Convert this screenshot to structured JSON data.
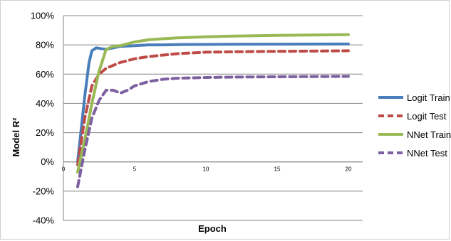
{
  "chart_data": {
    "type": "line",
    "title": "",
    "xlabel": "Epoch",
    "ylabel": "Model R²",
    "xlim": [
      0,
      21
    ],
    "ylim": [
      -40,
      100
    ],
    "y_ticks": [
      -40,
      -20,
      0,
      20,
      40,
      60,
      80,
      100
    ],
    "y_tick_labels": [
      "-40%",
      "-20%",
      "0%",
      "20%",
      "40%",
      "60%",
      "80%",
      "100%"
    ],
    "x_ticks": [
      0,
      5,
      10,
      15,
      20
    ],
    "x_tick_labels": [
      "0",
      "5",
      "10",
      "15",
      "20"
    ],
    "grid": "horizontal",
    "legend_position": "right",
    "series": [
      {
        "name": "Logit Train",
        "color": "#4a7ebb",
        "dash": "solid",
        "x": [
          1,
          1.5,
          1.8,
          2,
          2.3,
          2.6,
          3,
          3.5,
          4,
          5,
          6,
          7,
          8,
          10,
          12,
          15,
          20
        ],
        "y": [
          0,
          45,
          68,
          76,
          78,
          77.5,
          77,
          78,
          79,
          79.5,
          80,
          80,
          80.2,
          80.3,
          80.4,
          80.5,
          80.6
        ]
      },
      {
        "name": "Logit Test",
        "color": "#be4b48",
        "dash": "dashed",
        "x": [
          1,
          1.5,
          2,
          2.5,
          3,
          3.5,
          4,
          5,
          6,
          7,
          8,
          10,
          12,
          15,
          20
        ],
        "y": [
          -2,
          30,
          52,
          60,
          64,
          66,
          68,
          70.5,
          72,
          73,
          74,
          75,
          75.3,
          75.6,
          76
        ]
      },
      {
        "name": "NNet Train",
        "color": "#98b954",
        "dash": "solid",
        "x": [
          1,
          1.5,
          2,
          2.5,
          3,
          3.5,
          4,
          5,
          6,
          7,
          8,
          10,
          12,
          15,
          20
        ],
        "y": [
          -7,
          15,
          40,
          62,
          77,
          79,
          79.5,
          82,
          83.5,
          84.2,
          84.8,
          85.5,
          86,
          86.5,
          87
        ]
      },
      {
        "name": "NNet Test",
        "color": "#7d60a0",
        "dash": "dashed",
        "x": [
          1,
          1.5,
          2,
          2.5,
          3,
          3.5,
          4,
          4.5,
          5,
          6,
          7,
          8,
          10,
          12,
          15,
          20
        ],
        "y": [
          -17,
          8,
          30,
          42,
          49,
          49,
          47,
          49,
          52,
          55,
          56.5,
          57.2,
          57.7,
          58,
          58.2,
          58.5
        ]
      }
    ]
  }
}
